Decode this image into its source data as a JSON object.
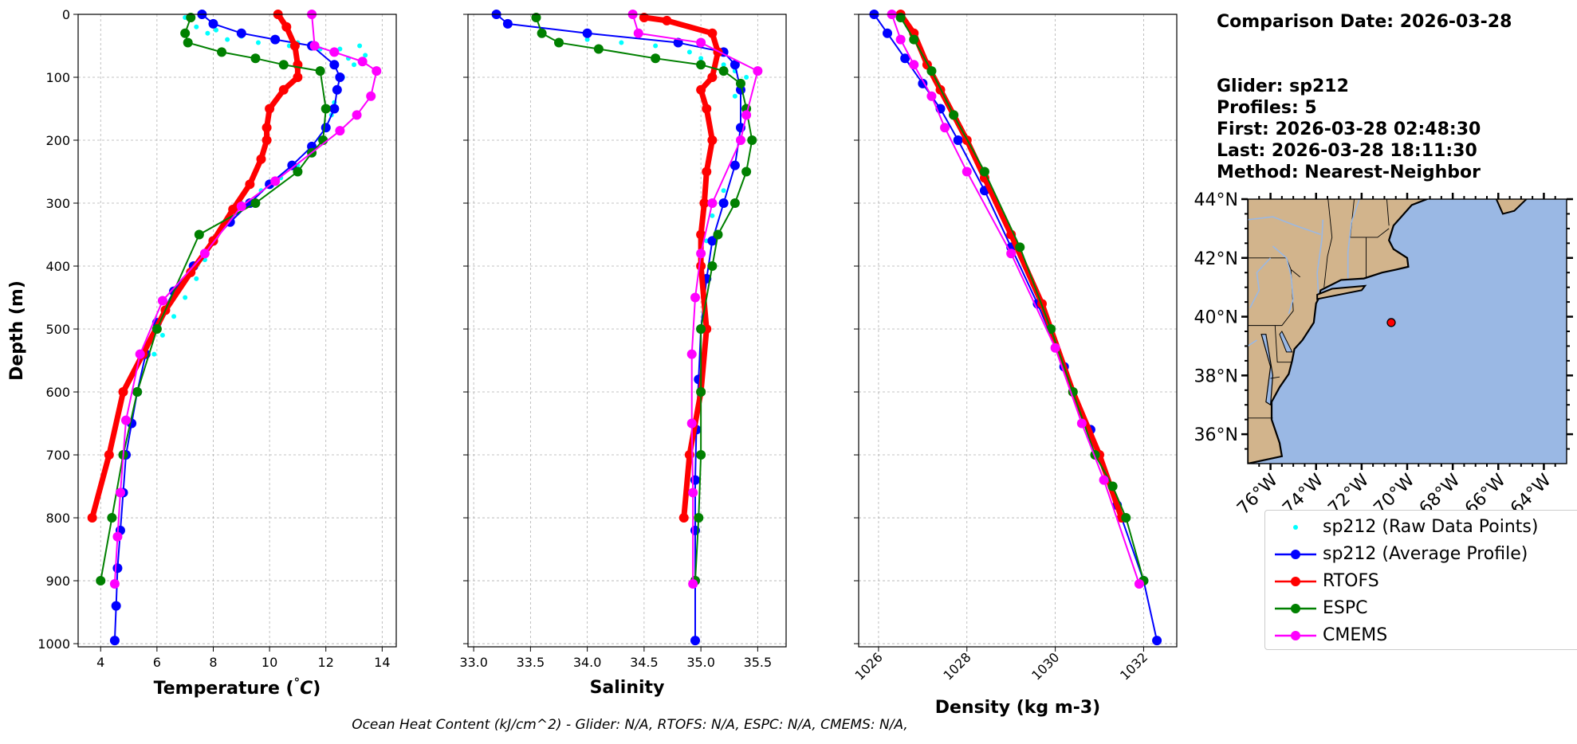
{
  "footer": "Ocean Heat Content (kJ/cm^2) - Glider: N/A,  RTOFS: N/A,  ESPC: N/A,  CMEMS: N/A,",
  "info": {
    "comparison_date": "Comparison Date: 2026-03-28",
    "glider": "Glider: sp212",
    "profiles": "Profiles: 5",
    "first": "First: 2026-03-28 02:48:30",
    "last": "Last: 2026-03-28 18:11:30",
    "method": "Method: Nearest-Neighbor"
  },
  "legend": [
    {
      "label": "sp212 (Raw Data Points)",
      "color": "#00ffff",
      "style": "dots"
    },
    {
      "label": "sp212 (Average Profile)",
      "color": "#0000ff",
      "style": "line"
    },
    {
      "label": "RTOFS",
      "color": "#ff0000",
      "style": "line"
    },
    {
      "label": "ESPC",
      "color": "#008000",
      "style": "line"
    },
    {
      "label": "CMEMS",
      "color": "#ff00ff",
      "style": "line"
    }
  ],
  "map": {
    "lat_labels": [
      "44°N",
      "42°N",
      "40°N",
      "38°N",
      "36°N"
    ],
    "lat_values": [
      44,
      42,
      40,
      38,
      36
    ],
    "lon_labels": [
      "76°W",
      "74°W",
      "72°W",
      "70°W",
      "68°W",
      "66°W",
      "64°W"
    ],
    "lon_values": [
      -76,
      -74,
      -72,
      -70,
      -68,
      -66,
      -64
    ],
    "xlim": [
      -77,
      -63
    ],
    "ylim": [
      35,
      44
    ],
    "land_color": "#d2b48c",
    "ocean_color": "#9ab8e4",
    "glider_position": [
      -70.7,
      39.8
    ]
  },
  "chart_data": [
    {
      "type": "line",
      "xlabel": "Temperature (°C)",
      "ylabel": "Depth (m)",
      "xlim": [
        3.2,
        14.5
      ],
      "ylim": [
        1005,
        0
      ],
      "xticks": [
        4,
        6,
        8,
        10,
        12,
        14
      ],
      "yticks": [
        0,
        100,
        200,
        300,
        400,
        500,
        600,
        700,
        800,
        900,
        1000
      ],
      "grid": true,
      "series": [
        {
          "name": "sp212 (Raw Data Points)",
          "color": "#00ffff",
          "x": [
            7.0,
            7.4,
            7.8,
            8.1,
            8.5,
            9.0,
            9.6,
            10.2,
            10.7,
            11.0,
            11.8,
            12.2,
            12.5,
            12.8,
            13.2,
            13.4,
            13.0,
            12.6,
            12.4,
            12.3,
            12.2,
            12.0,
            11.8,
            11.5,
            11.0,
            10.4,
            9.7,
            9.0,
            8.4,
            8.0,
            7.7,
            7.4,
            7.0,
            6.6,
            6.2,
            5.9
          ],
          "y": [
            5,
            20,
            30,
            25,
            40,
            35,
            45,
            40,
            50,
            45,
            55,
            60,
            55,
            70,
            50,
            65,
            80,
            100,
            120,
            140,
            160,
            180,
            200,
            220,
            240,
            260,
            280,
            300,
            330,
            360,
            390,
            420,
            450,
            480,
            510,
            540
          ]
        },
        {
          "name": "sp212 (Average Profile)",
          "color": "#0000ff",
          "x": [
            7.6,
            8.0,
            9.0,
            10.2,
            11.5,
            12.3,
            12.5,
            12.4,
            12.3,
            12.0,
            11.5,
            10.8,
            10.0,
            9.3,
            8.6,
            8.0,
            7.3,
            6.6,
            6.0,
            5.6,
            5.3,
            5.1,
            4.9,
            4.8,
            4.7,
            4.6,
            4.55,
            4.5
          ],
          "y": [
            0,
            15,
            30,
            40,
            50,
            80,
            100,
            120,
            150,
            180,
            210,
            240,
            270,
            300,
            330,
            360,
            400,
            440,
            490,
            540,
            600,
            650,
            700,
            760,
            820,
            880,
            940,
            995
          ]
        },
        {
          "name": "RTOFS",
          "color": "#ff0000",
          "x": [
            10.3,
            10.6,
            10.9,
            11.0,
            11.0,
            10.5,
            10.0,
            9.9,
            9.9,
            9.7,
            9.3,
            8.7,
            8.0,
            7.2,
            6.3,
            5.5,
            4.8,
            4.3,
            3.7
          ],
          "y": [
            0,
            20,
            50,
            80,
            100,
            120,
            150,
            180,
            200,
            230,
            270,
            310,
            360,
            410,
            470,
            540,
            600,
            700,
            800
          ]
        },
        {
          "name": "ESPC",
          "color": "#008000",
          "x": [
            7.2,
            7.0,
            7.1,
            8.3,
            9.5,
            10.5,
            11.8,
            12.0,
            11.9,
            11.5,
            11.0,
            9.5,
            7.5,
            6.0,
            5.3,
            4.8,
            4.4,
            4.0
          ],
          "y": [
            5,
            30,
            45,
            60,
            70,
            80,
            90,
            150,
            200,
            220,
            250,
            300,
            350,
            500,
            600,
            700,
            800,
            900
          ]
        },
        {
          "name": "CMEMS",
          "color": "#ff00ff",
          "x": [
            11.5,
            11.6,
            12.3,
            13.3,
            13.8,
            13.6,
            13.1,
            12.5,
            10.2,
            9.0,
            7.7,
            6.2,
            5.4,
            4.9,
            4.7,
            4.6,
            4.5
          ],
          "y": [
            0,
            50,
            60,
            75,
            90,
            130,
            160,
            185,
            265,
            305,
            380,
            455,
            540,
            645,
            760,
            830,
            905
          ]
        }
      ]
    },
    {
      "type": "line",
      "xlabel": "Salinity",
      "xlim": [
        32.95,
        35.75
      ],
      "ylim": [
        1005,
        0
      ],
      "xticks": [
        33.0,
        33.5,
        34.0,
        34.5,
        35.0,
        35.5
      ],
      "grid": true,
      "series": [
        {
          "name": "sp212 (Raw Data Points)",
          "color": "#00ffff",
          "x": [
            33.6,
            34.0,
            34.3,
            34.6,
            34.9,
            35.0,
            35.2,
            35.3,
            35.4,
            35.35,
            35.3,
            35.4,
            35.35,
            35.3,
            35.2,
            35.1,
            35.05
          ],
          "y": [
            30,
            40,
            45,
            50,
            60,
            70,
            80,
            90,
            100,
            110,
            130,
            160,
            200,
            240,
            280,
            320,
            360
          ]
        },
        {
          "name": "sp212 (Average Profile)",
          "color": "#0000ff",
          "x": [
            33.2,
            33.3,
            34.0,
            34.8,
            35.2,
            35.3,
            35.35,
            35.35,
            35.3,
            35.2,
            35.1,
            35.05,
            35.0,
            34.98,
            34.96,
            34.95,
            34.95,
            34.95,
            34.95
          ],
          "y": [
            0,
            15,
            30,
            45,
            60,
            80,
            120,
            180,
            240,
            300,
            360,
            420,
            500,
            580,
            660,
            740,
            820,
            900,
            995
          ]
        },
        {
          "name": "RTOFS",
          "color": "#ff0000",
          "x": [
            34.5,
            34.7,
            35.1,
            35.15,
            35.1,
            35.0,
            35.05,
            35.1,
            35.05,
            35.03,
            35.0,
            35.0,
            35.05,
            35.0,
            34.9,
            34.85
          ],
          "y": [
            5,
            10,
            30,
            60,
            100,
            120,
            150,
            200,
            250,
            300,
            350,
            400,
            500,
            600,
            700,
            800
          ]
        },
        {
          "name": "ESPC",
          "color": "#008000",
          "x": [
            33.55,
            33.6,
            33.75,
            34.1,
            34.6,
            35.0,
            35.2,
            35.35,
            35.4,
            35.45,
            35.4,
            35.3,
            35.15,
            35.1,
            35.0,
            35.0,
            35.0,
            34.98,
            34.95
          ],
          "y": [
            5,
            30,
            45,
            55,
            70,
            80,
            90,
            110,
            150,
            200,
            250,
            300,
            350,
            400,
            500,
            600,
            700,
            800,
            900
          ]
        },
        {
          "name": "CMEMS",
          "color": "#ff00ff",
          "x": [
            34.4,
            34.45,
            35.0,
            35.5,
            35.4,
            35.35,
            35.1,
            35.0,
            34.95,
            34.92,
            34.92,
            34.93,
            34.93
          ],
          "y": [
            0,
            30,
            45,
            90,
            160,
            200,
            300,
            380,
            450,
            540,
            650,
            760,
            905
          ]
        }
      ]
    },
    {
      "type": "line",
      "xlabel": "Density (kg m-3)",
      "xlim": [
        1025.55,
        1032.75
      ],
      "ylim": [
        1005,
        0
      ],
      "xticks": [
        1026,
        1028,
        1030,
        1032
      ],
      "grid": true,
      "series": [
        {
          "name": "sp212 (Average Profile)",
          "color": "#0000ff",
          "x": [
            1025.9,
            1026.2,
            1026.6,
            1027.0,
            1027.4,
            1027.8,
            1028.4,
            1029.0,
            1029.6,
            1030.2,
            1030.8,
            1031.4,
            1032.0,
            1032.3
          ],
          "y": [
            0,
            30,
            70,
            110,
            150,
            200,
            280,
            370,
            460,
            560,
            660,
            780,
            900,
            995
          ]
        },
        {
          "name": "RTOFS",
          "color": "#ff0000",
          "x": [
            1026.5,
            1026.8,
            1027.1,
            1027.4,
            1027.7,
            1028.0,
            1028.4,
            1029.0,
            1029.7,
            1030.4,
            1031.0,
            1031.5
          ],
          "y": [
            0,
            30,
            80,
            120,
            160,
            200,
            260,
            350,
            460,
            600,
            700,
            800
          ]
        },
        {
          "name": "ESPC",
          "color": "#008000",
          "x": [
            1026.5,
            1026.8,
            1027.2,
            1027.7,
            1028.4,
            1029.2,
            1029.9,
            1030.4,
            1030.9,
            1031.3,
            1031.6,
            1032.0
          ],
          "y": [
            5,
            40,
            90,
            160,
            250,
            370,
            500,
            600,
            700,
            750,
            800,
            900
          ]
        },
        {
          "name": "CMEMS",
          "color": "#ff00ff",
          "x": [
            1026.3,
            1026.5,
            1026.8,
            1027.2,
            1027.5,
            1028.0,
            1029.0,
            1030.0,
            1030.6,
            1031.1,
            1031.9
          ],
          "y": [
            0,
            40,
            80,
            130,
            180,
            250,
            380,
            530,
            650,
            740,
            905
          ]
        }
      ]
    }
  ]
}
